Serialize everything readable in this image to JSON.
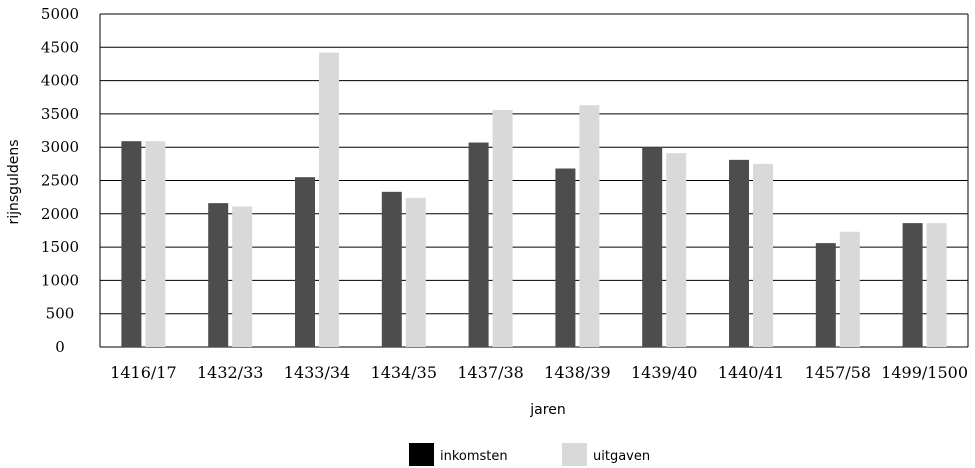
{
  "chart_data": {
    "type": "bar",
    "categories": [
      "1416/17",
      "1432/33",
      "1433/34",
      "1434/35",
      "1437/38",
      "1438/39",
      "1439/40",
      "1440/41",
      "1457/58",
      "1499/1500"
    ],
    "series": [
      {
        "name": "inkomsten",
        "color": "#4d4d4d",
        "values": [
          3090,
          2160,
          2550,
          2330,
          3070,
          2680,
          3000,
          2810,
          1560,
          1860
        ]
      },
      {
        "name": "uitgaven",
        "color": "#d9d9d9",
        "values": [
          3090,
          2110,
          4420,
          2240,
          3560,
          3630,
          2910,
          2750,
          1730,
          1860
        ]
      }
    ],
    "ylabel": "rijnsguldens",
    "xlabel": "jaren",
    "ylim": [
      0,
      5000
    ],
    "yticks": [
      0,
      500,
      1000,
      1500,
      2000,
      2500,
      3000,
      3500,
      4000,
      4500,
      5000
    ],
    "grid": true,
    "legend_position": "bottom-center"
  }
}
